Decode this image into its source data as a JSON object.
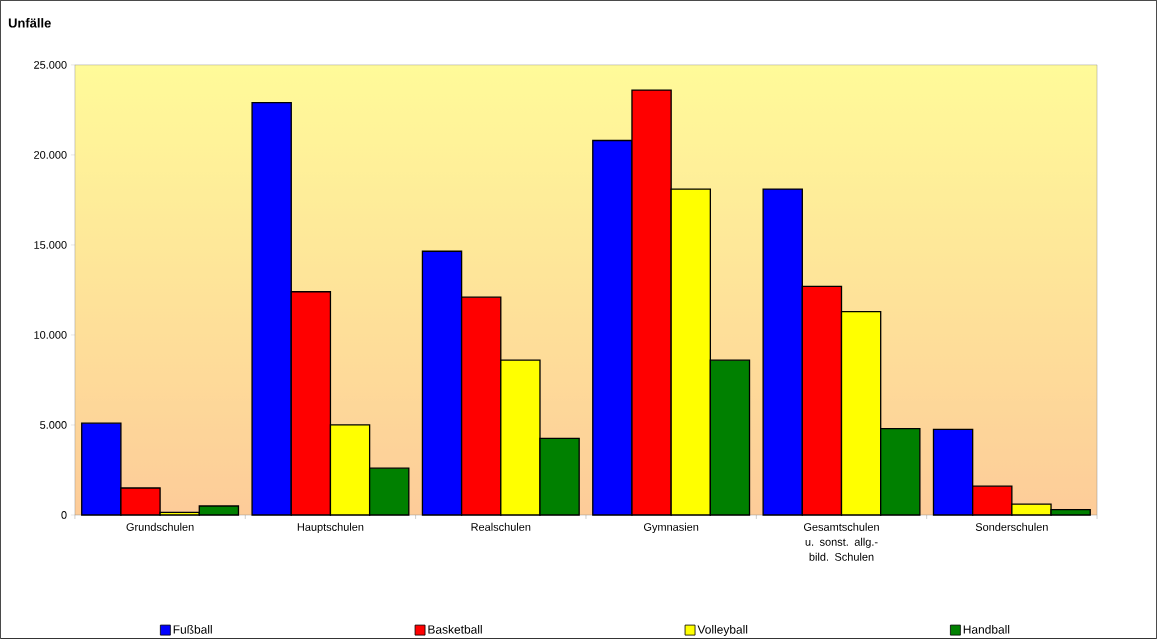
{
  "chart_data": {
    "type": "bar",
    "title": "Unfälle",
    "categories": [
      "Grundschulen",
      "Hauptschulen",
      "Realschulen",
      "Gymnasien",
      "Gesamtschulen u. sonst. allg.-bild. Schulen",
      "Sonderschulen"
    ],
    "series": [
      {
        "name": "Fußball",
        "color": "#0000ff",
        "values": [
          5100,
          22900,
          14650,
          20800,
          18100,
          4750
        ]
      },
      {
        "name": "Basketball",
        "color": "#ff0000",
        "values": [
          1500,
          12400,
          12100,
          23600,
          12700,
          1600
        ]
      },
      {
        "name": "Volleyball",
        "color": "#ffff00",
        "values": [
          150,
          5000,
          8600,
          18100,
          11300,
          600
        ]
      },
      {
        "name": "Handball",
        "color": "#008000",
        "values": [
          500,
          2600,
          4250,
          8600,
          4800,
          300
        ]
      }
    ],
    "ylim": [
      0,
      25000
    ],
    "yticks": [
      0,
      {
        "value": 5000,
        "label": "5.000"
      },
      {
        "value": 10000,
        "label": "10.000"
      },
      {
        "value": 15000,
        "label": "15.000"
      },
      {
        "value": 20000,
        "label": "20.000"
      },
      {
        "value": 25000,
        "label": "25.000"
      }
    ],
    "legend": "bottom"
  }
}
